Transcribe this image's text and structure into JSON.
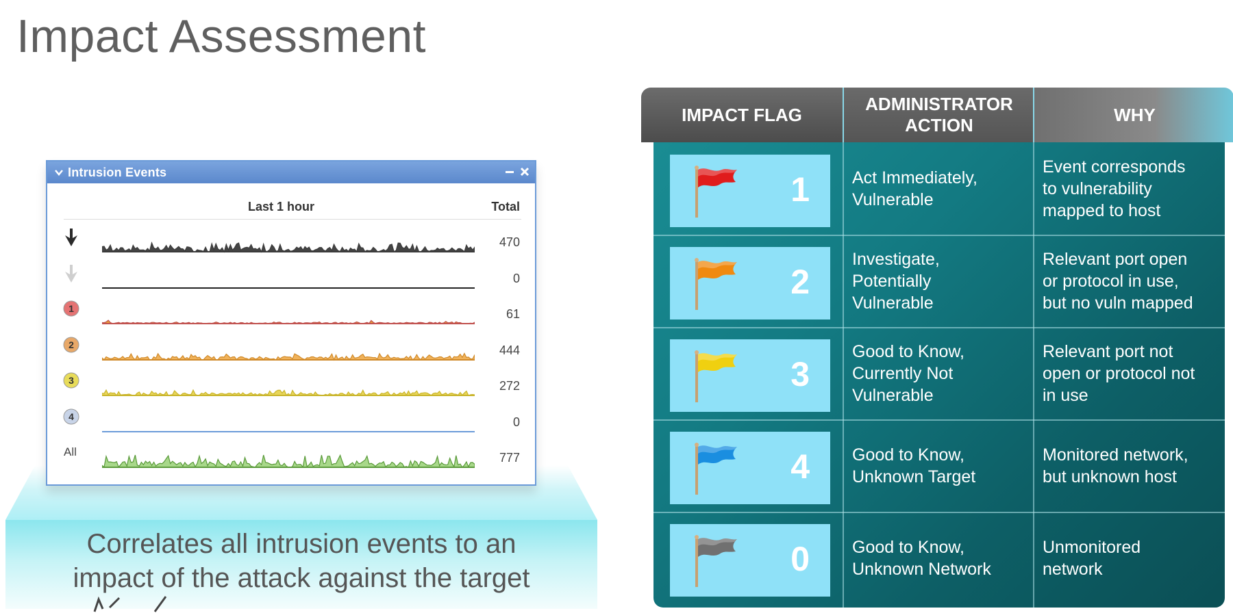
{
  "page_title": "Impact Assessment",
  "caption": {
    "line1": "Correlates all intrusion events to an",
    "line2": "impact of the attack against the target"
  },
  "widget": {
    "title": "Intrusion Events",
    "col_period": "Last 1 hour",
    "col_total": "Total",
    "rows": [
      {
        "id": "priority-high",
        "icon": "arrow-down-dark-icon",
        "label": "",
        "total": "470",
        "color": "#3a3a3a",
        "fill": "#444444"
      },
      {
        "id": "priority-low",
        "icon": "arrow-down-light-icon",
        "label": "",
        "total": "0",
        "color": "#222222",
        "fill": "none"
      },
      {
        "id": "impact-1",
        "icon": "impact-1-badge-icon",
        "label": "",
        "total": "61",
        "color": "#c0504d",
        "fill": "#e8a23a"
      },
      {
        "id": "impact-2",
        "icon": "impact-2-badge-icon",
        "label": "",
        "total": "444",
        "color": "#d08a2a",
        "fill": "#f0b25a"
      },
      {
        "id": "impact-3",
        "icon": "impact-3-badge-icon",
        "label": "",
        "total": "272",
        "color": "#c9b42a",
        "fill": "#e8d65a"
      },
      {
        "id": "impact-4",
        "icon": "impact-4-badge-icon",
        "label": "",
        "total": "0",
        "color": "#6a9ad8",
        "fill": "none"
      },
      {
        "id": "all",
        "icon": "",
        "label": "All",
        "total": "777",
        "color": "#5a9a3a",
        "fill": "#a8d88a"
      }
    ],
    "badges": {
      "b1": "1",
      "b2": "2",
      "b3": "3",
      "b4": "4"
    }
  },
  "impact_table": {
    "headers": {
      "flag": "IMPACT FLAG",
      "action_line1": "ADMINISTRATOR",
      "action_line2": "ACTION",
      "why": "WHY"
    },
    "rows": [
      {
        "number": "1",
        "flag_color": "#e01c1c",
        "flag_icon": "red-flag-icon",
        "action": [
          "Act Immediately,",
          "Vulnerable"
        ],
        "why": [
          "Event corresponds",
          "to vulnerability",
          "mapped to host"
        ]
      },
      {
        "number": "2",
        "flag_color": "#f08a10",
        "flag_icon": "orange-flag-icon",
        "action": [
          "Investigate,",
          "Potentially",
          "Vulnerable"
        ],
        "why": [
          "Relevant port open",
          "or protocol in use,",
          "but no vuln mapped"
        ]
      },
      {
        "number": "3",
        "flag_color": "#f0d010",
        "flag_icon": "yellow-flag-icon",
        "action": [
          "Good to Know,",
          "Currently Not",
          "Vulnerable"
        ],
        "why": [
          "Relevant port not",
          "open or protocol not",
          "in use"
        ]
      },
      {
        "number": "4",
        "flag_color": "#1a8ee0",
        "flag_icon": "blue-flag-icon",
        "action": [
          "Good to Know,",
          "Unknown Target"
        ],
        "why": [
          "Monitored network,",
          "but unknown host"
        ]
      },
      {
        "number": "0",
        "flag_color": "#707070",
        "flag_icon": "gray-flag-icon",
        "action": [
          "Good to Know,",
          "Unknown Network"
        ],
        "why": [
          "Unmonitored",
          "network"
        ]
      }
    ]
  }
}
